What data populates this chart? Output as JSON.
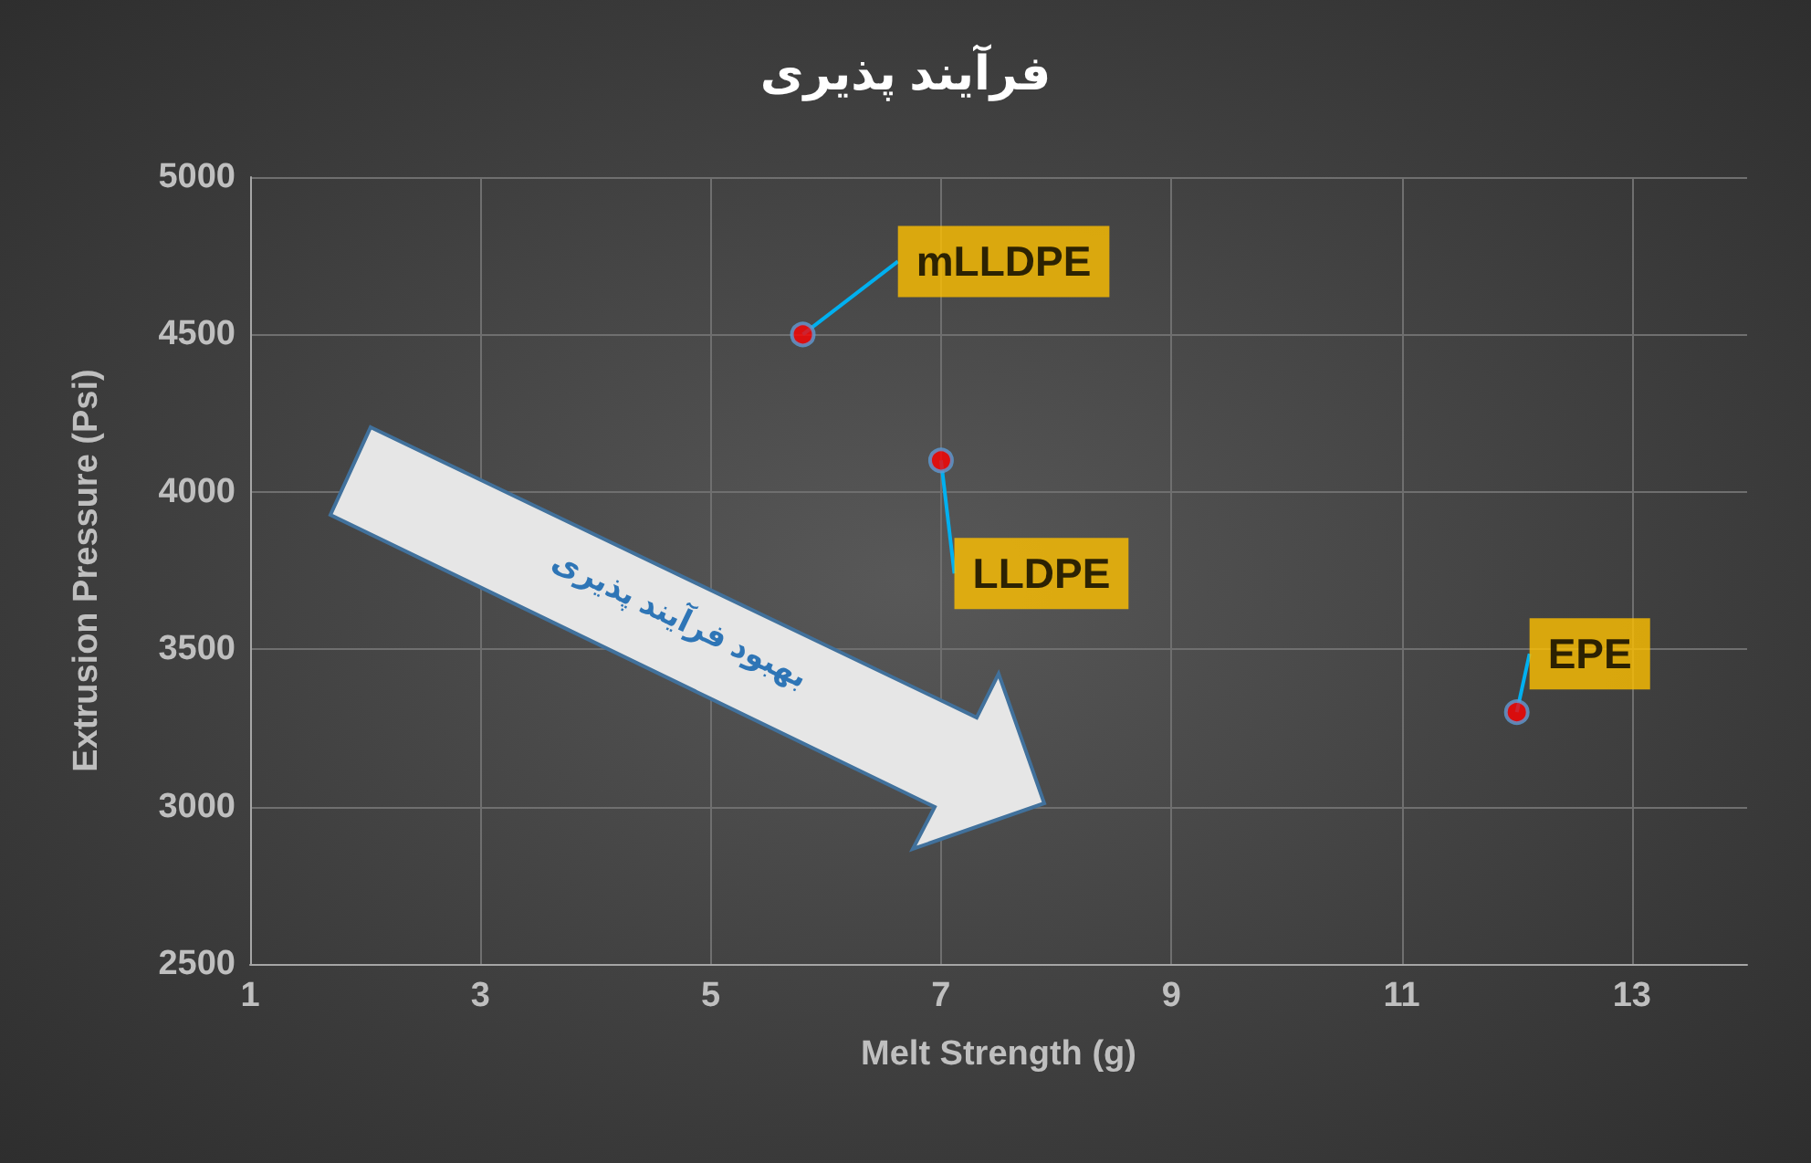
{
  "chart_data": {
    "type": "scatter",
    "title": "فرآیند پذیری",
    "xlabel": "Melt Strength (g)",
    "ylabel": "Extrusion Pressure (Psi)",
    "x": [
      5.8,
      7,
      12
    ],
    "values": [
      4500,
      4100,
      3300
    ],
    "color": "#ff0000",
    "marker": "circle",
    "xlim": [
      1,
      14
    ],
    "xticks": [
      1,
      3,
      5,
      7,
      9,
      11,
      13
    ],
    "ylim": [
      2500,
      5000
    ],
    "yticks": [
      2500,
      3000,
      3500,
      4000,
      4500,
      5000
    ],
    "grid": true,
    "annotations": [
      {
        "text": "mLLDPE",
        "x": 5.8,
        "y": 4500
      },
      {
        "text": "LLDPE",
        "x": 7,
        "y": 4100
      },
      {
        "text": "EPE",
        "x": 12,
        "y": 3300
      },
      "بهبود فرآیند پذیری"
    ]
  }
}
